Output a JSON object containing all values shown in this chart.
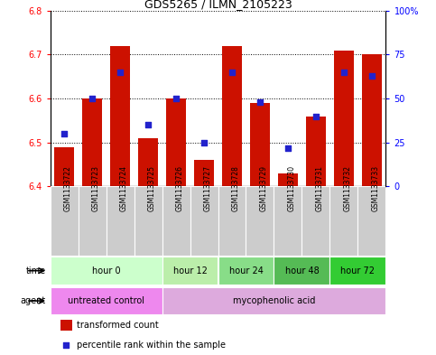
{
  "title": "GDS5265 / ILMN_2105223",
  "samples": [
    "GSM1133722",
    "GSM1133723",
    "GSM1133724",
    "GSM1133725",
    "GSM1133726",
    "GSM1133727",
    "GSM1133728",
    "GSM1133729",
    "GSM1133730",
    "GSM1133731",
    "GSM1133732",
    "GSM1133733"
  ],
  "transformed_count": [
    6.49,
    6.6,
    6.72,
    6.51,
    6.6,
    6.46,
    6.72,
    6.59,
    6.43,
    6.56,
    6.71,
    6.7
  ],
  "percentile_rank": [
    30,
    50,
    65,
    35,
    50,
    25,
    65,
    48,
    22,
    40,
    65,
    63
  ],
  "ylim_left": [
    6.4,
    6.8
  ],
  "ylim_right": [
    0,
    100
  ],
  "yticks_left": [
    6.4,
    6.5,
    6.6,
    6.7,
    6.8
  ],
  "yticks_right": [
    0,
    25,
    50,
    75,
    100
  ],
  "bar_color": "#cc1100",
  "dot_color": "#2222cc",
  "bar_bottom": 6.4,
  "time_groups": [
    {
      "label": "hour 0",
      "start": 0,
      "end": 3,
      "color": "#ccffcc"
    },
    {
      "label": "hour 12",
      "start": 4,
      "end": 5,
      "color": "#bbeeaa"
    },
    {
      "label": "hour 24",
      "start": 6,
      "end": 7,
      "color": "#88dd88"
    },
    {
      "label": "hour 48",
      "start": 8,
      "end": 9,
      "color": "#55bb55"
    },
    {
      "label": "hour 72",
      "start": 10,
      "end": 11,
      "color": "#33cc33"
    }
  ],
  "agent_groups": [
    {
      "label": "untreated control",
      "start": 0,
      "end": 3,
      "color": "#ee88ee"
    },
    {
      "label": "mycophenolic acid",
      "start": 4,
      "end": 11,
      "color": "#ddaadd"
    }
  ],
  "legend_bar_label": "transformed count",
  "legend_dot_label": "percentile rank within the sample",
  "time_label": "time",
  "agent_label": "agent",
  "background_color": "#ffffff",
  "plot_bg": "#ffffff",
  "sample_bg": "#cccccc",
  "border_color": "#999999"
}
